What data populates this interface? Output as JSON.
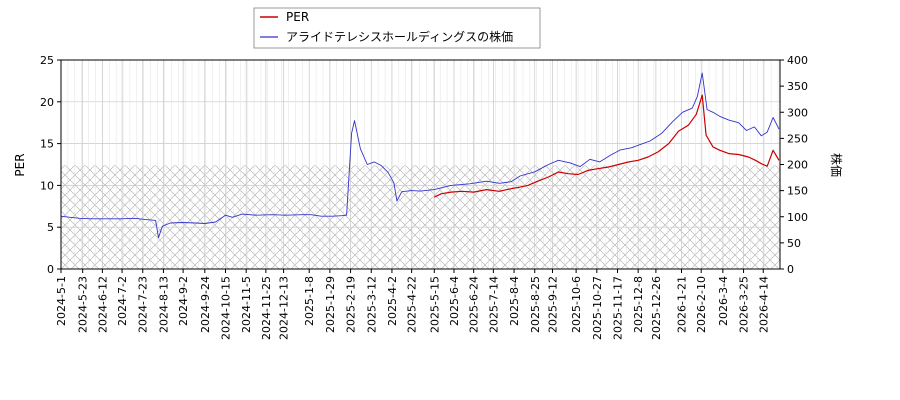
{
  "chart_data": {
    "type": "line",
    "ylabel_left": "PER",
    "ylabel_right": "株価",
    "ylim_left": [
      0,
      25
    ],
    "ylim_right": [
      0,
      400
    ],
    "yticks_left": [
      0,
      5,
      10,
      15,
      20,
      25
    ],
    "yticks_right": [
      0,
      50,
      100,
      150,
      200,
      250,
      300,
      350,
      400
    ],
    "xlim": [
      "2024-05-01",
      "2026-05-01"
    ],
    "xticks": [
      "2024-5-1",
      "2024-5-23",
      "2024-6-12",
      "2024-7-2",
      "2024-7-23",
      "2024-8-13",
      "2024-9-2",
      "2024-9-24",
      "2024-10-15",
      "2024-11-5",
      "2024-11-25",
      "2024-12-13",
      "2025-1-8",
      "2025-1-29",
      "2025-2-19",
      "2025-3-12",
      "2025-4-2",
      "2025-4-22",
      "2025-5-15",
      "2025-6-4",
      "2025-6-24",
      "2025-7-14",
      "2025-8-4",
      "2025-8-25",
      "2025-9-12",
      "2025-10-6",
      "2025-10-27",
      "2025-11-17",
      "2025-12-8",
      "2025-12-26",
      "2026-1-21",
      "2026-2-10",
      "2026-3-4",
      "2026-3-25",
      "2026-4-14"
    ],
    "grid": true,
    "legend_position": "top-left",
    "hatched_region_left_max": 12.4,
    "series": [
      {
        "name": "PER",
        "axis": "left",
        "color": "#cc0000",
        "points": [
          [
            "2025-05-15",
            8.6
          ],
          [
            "2025-05-22",
            9.0
          ],
          [
            "2025-06-01",
            9.2
          ],
          [
            "2025-06-12",
            9.3
          ],
          [
            "2025-06-24",
            9.2
          ],
          [
            "2025-07-07",
            9.5
          ],
          [
            "2025-07-20",
            9.3
          ],
          [
            "2025-08-01",
            9.6
          ],
          [
            "2025-08-10",
            9.8
          ],
          [
            "2025-08-18",
            10.0
          ],
          [
            "2025-08-28",
            10.5
          ],
          [
            "2025-09-08",
            11.0
          ],
          [
            "2025-09-18",
            11.6
          ],
          [
            "2025-09-28",
            11.4
          ],
          [
            "2025-10-08",
            11.3
          ],
          [
            "2025-10-18",
            11.8
          ],
          [
            "2025-10-28",
            12.0
          ],
          [
            "2025-11-08",
            12.2
          ],
          [
            "2025-11-18",
            12.5
          ],
          [
            "2025-11-28",
            12.8
          ],
          [
            "2025-12-08",
            13.0
          ],
          [
            "2025-12-18",
            13.4
          ],
          [
            "2025-12-28",
            14.0
          ],
          [
            "2026-01-08",
            15.0
          ],
          [
            "2026-01-18",
            16.5
          ],
          [
            "2026-01-28",
            17.2
          ],
          [
            "2026-02-05",
            18.5
          ],
          [
            "2026-02-11",
            20.8
          ],
          [
            "2026-02-15",
            16.0
          ],
          [
            "2026-02-22",
            14.6
          ],
          [
            "2026-03-01",
            14.2
          ],
          [
            "2026-03-10",
            13.8
          ],
          [
            "2026-03-20",
            13.7
          ],
          [
            "2026-03-30",
            13.4
          ],
          [
            "2026-04-06",
            13.0
          ],
          [
            "2026-04-12",
            12.6
          ],
          [
            "2026-04-18",
            12.3
          ],
          [
            "2026-04-24",
            14.2
          ],
          [
            "2026-04-30",
            13.0
          ]
        ]
      },
      {
        "name": "アライドテレシスホールディングスの株価",
        "axis": "right",
        "color": "#3333cc",
        "points": [
          [
            "2024-05-01",
            101
          ],
          [
            "2024-05-10",
            99
          ],
          [
            "2024-05-20",
            97
          ],
          [
            "2024-06-01",
            96
          ],
          [
            "2024-06-15",
            96
          ],
          [
            "2024-07-01",
            96
          ],
          [
            "2024-07-15",
            97
          ],
          [
            "2024-07-25",
            95
          ],
          [
            "2024-08-05",
            93
          ],
          [
            "2024-08-08",
            60
          ],
          [
            "2024-08-12",
            82
          ],
          [
            "2024-08-20",
            88
          ],
          [
            "2024-09-01",
            89
          ],
          [
            "2024-09-15",
            88
          ],
          [
            "2024-09-24",
            87
          ],
          [
            "2024-10-05",
            90
          ],
          [
            "2024-10-15",
            103
          ],
          [
            "2024-10-22",
            99
          ],
          [
            "2024-11-01",
            105
          ],
          [
            "2024-11-15",
            103
          ],
          [
            "2024-12-01",
            104
          ],
          [
            "2024-12-15",
            103
          ],
          [
            "2025-01-01",
            104
          ],
          [
            "2025-01-10",
            104
          ],
          [
            "2025-01-20",
            101
          ],
          [
            "2025-02-01",
            101
          ],
          [
            "2025-02-10",
            102
          ],
          [
            "2025-02-15",
            103
          ],
          [
            "2025-02-20",
            260
          ],
          [
            "2025-02-23",
            284
          ],
          [
            "2025-03-01",
            230
          ],
          [
            "2025-03-08",
            200
          ],
          [
            "2025-03-15",
            205
          ],
          [
            "2025-03-22",
            198
          ],
          [
            "2025-03-29",
            185
          ],
          [
            "2025-04-04",
            165
          ],
          [
            "2025-04-07",
            130
          ],
          [
            "2025-04-12",
            148
          ],
          [
            "2025-04-22",
            150
          ],
          [
            "2025-05-01",
            149
          ],
          [
            "2025-05-15",
            152
          ],
          [
            "2025-06-01",
            160
          ],
          [
            "2025-06-20",
            163
          ],
          [
            "2025-07-07",
            168
          ],
          [
            "2025-07-20",
            164
          ],
          [
            "2025-08-01",
            167
          ],
          [
            "2025-08-10",
            178
          ],
          [
            "2025-08-25",
            186
          ],
          [
            "2025-09-08",
            200
          ],
          [
            "2025-09-18",
            208
          ],
          [
            "2025-09-30",
            203
          ],
          [
            "2025-10-10",
            196
          ],
          [
            "2025-10-20",
            210
          ],
          [
            "2025-10-30",
            205
          ],
          [
            "2025-11-10",
            218
          ],
          [
            "2025-11-20",
            228
          ],
          [
            "2025-12-01",
            232
          ],
          [
            "2025-12-10",
            238
          ],
          [
            "2025-12-20",
            245
          ],
          [
            "2026-01-01",
            260
          ],
          [
            "2026-01-12",
            282
          ],
          [
            "2026-01-22",
            300
          ],
          [
            "2026-02-01",
            308
          ],
          [
            "2026-02-06",
            330
          ],
          [
            "2026-02-11",
            375
          ],
          [
            "2026-02-16",
            305
          ],
          [
            "2026-02-22",
            300
          ],
          [
            "2026-03-01",
            292
          ],
          [
            "2026-03-10",
            285
          ],
          [
            "2026-03-20",
            280
          ],
          [
            "2026-03-28",
            265
          ],
          [
            "2026-04-05",
            272
          ],
          [
            "2026-04-12",
            255
          ],
          [
            "2026-04-18",
            262
          ],
          [
            "2026-04-24",
            290
          ],
          [
            "2026-04-30",
            268
          ]
        ]
      }
    ]
  }
}
